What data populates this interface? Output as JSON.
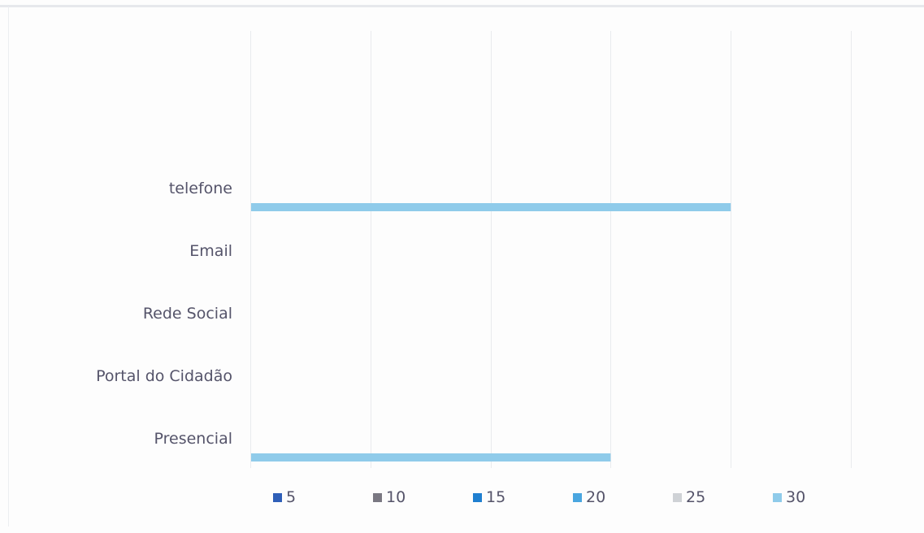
{
  "chart_data": {
    "type": "bar",
    "orientation": "horizontal",
    "categories": [
      "telefone",
      "Email",
      "Rede Social",
      "Portal do Cidadão",
      "Presencial"
    ],
    "series": [
      {
        "name": "5",
        "color": "#2f5fb8",
        "values": [
          0,
          0,
          0,
          0,
          0
        ]
      },
      {
        "name": "10",
        "color": "#7a7882",
        "values": [
          0,
          0,
          0,
          0,
          0
        ]
      },
      {
        "name": "15",
        "color": "#1f7fd0",
        "values": [
          0,
          0,
          0,
          0,
          0
        ]
      },
      {
        "name": "20",
        "color": "#4aa6e0",
        "values": [
          0,
          0,
          0,
          0,
          0
        ]
      },
      {
        "name": "25",
        "color": "#cfd2d6",
        "values": [
          0,
          0,
          0,
          0,
          0
        ]
      },
      {
        "name": "30",
        "color": "#8fcbea",
        "values": [
          20,
          0,
          0,
          0,
          15
        ]
      }
    ],
    "xlim": [
      0,
      25
    ],
    "grid": true,
    "legend_position": "bottom",
    "title": "",
    "xlabel": "",
    "ylabel": ""
  }
}
